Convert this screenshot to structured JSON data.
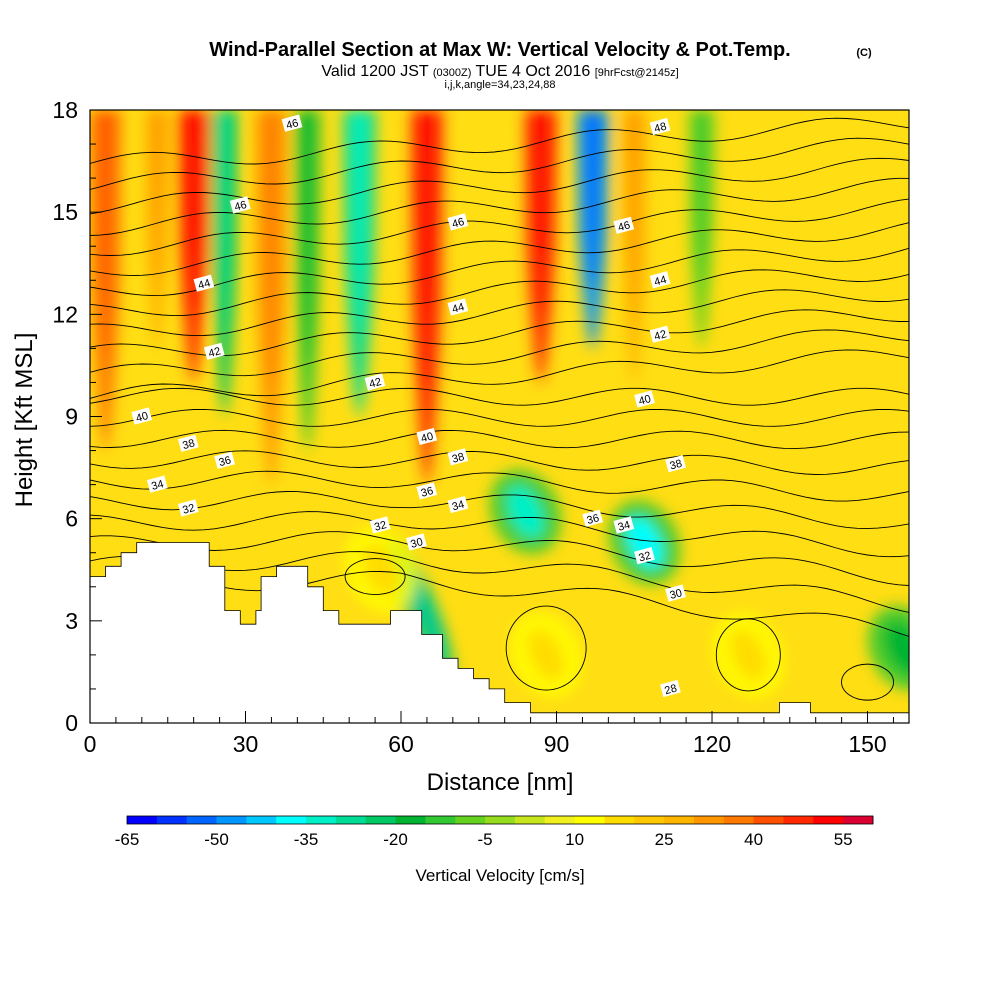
{
  "header": {
    "title": "Wind-Parallel Section at Max W: Vertical Velocity & Pot.Temp.",
    "copyright": "(C)",
    "valid_prefix": "Valid 1200 JST",
    "valid_utc": "(0300Z)",
    "valid_date": "TUE 4 Oct 2016",
    "forecast_tag": "[9hrFcst@2145z]",
    "indices": "i,j,k,angle=34,23,24,88"
  },
  "chart_data": {
    "type": "heatmap",
    "title": "Wind-Parallel Section at Max W: Vertical Velocity & Pot.Temp.",
    "xlabel": "Distance [nm]",
    "ylabel": "Height [Kft MSL]",
    "xlim": [
      0,
      158
    ],
    "ylim": [
      0,
      18
    ],
    "x_ticks": [
      0,
      30,
      60,
      90,
      120,
      150
    ],
    "y_ticks": [
      0,
      3,
      6,
      9,
      12,
      15,
      18
    ],
    "colorbar": {
      "label": "Vertical Velocity [cm/s]",
      "min": -65,
      "max": 60,
      "step": 5,
      "tick_labels": [
        -65,
        -50,
        -35,
        -20,
        -5,
        10,
        25,
        40,
        55
      ],
      "colors": [
        "#0000ff",
        "#0032ff",
        "#0064ff",
        "#0096ff",
        "#00c8ff",
        "#00ffff",
        "#00f0c8",
        "#00dc96",
        "#00c864",
        "#00b432",
        "#32c832",
        "#64d21e",
        "#96dc1e",
        "#c8e61e",
        "#f0f01e",
        "#ffff00",
        "#ffdc00",
        "#ffc800",
        "#ffb400",
        "#ff9600",
        "#ff7800",
        "#ff5000",
        "#ff2800",
        "#ff0000",
        "#dc0032",
        "#b40050",
        "#96006e",
        "#780096",
        "#500096"
      ]
    },
    "vertical_velocity_features": [
      {
        "x": 3,
        "top": 18,
        "bottom": 8,
        "w": 35,
        "shape": "column"
      },
      {
        "x": 13,
        "top": 18,
        "bottom": 11,
        "w": 25,
        "shape": "column"
      },
      {
        "x": 20,
        "top": 18,
        "bottom": 10,
        "w": 45,
        "shape": "column"
      },
      {
        "x": 26,
        "top": 18,
        "bottom": 9,
        "w": -25,
        "shape": "column"
      },
      {
        "x": 35,
        "top": 18,
        "bottom": 7,
        "w": 30,
        "shape": "column"
      },
      {
        "x": 42,
        "top": 18,
        "bottom": 8,
        "w": -15,
        "shape": "column"
      },
      {
        "x": 52,
        "top": 18,
        "bottom": 9,
        "w": -30,
        "shape": "column"
      },
      {
        "x": 65,
        "top": 18,
        "bottom": 7,
        "w": 45,
        "shape": "column"
      },
      {
        "x": 87,
        "top": 18,
        "bottom": 10,
        "w": 45,
        "shape": "column"
      },
      {
        "x": 97,
        "top": 18,
        "bottom": 11,
        "w": -50,
        "shape": "column"
      },
      {
        "x": 105,
        "top": 18,
        "bottom": 10,
        "w": 25,
        "shape": "column"
      },
      {
        "x": 118,
        "top": 18,
        "bottom": 11,
        "w": -10,
        "shape": "column"
      },
      {
        "x": 64,
        "y": 3.5,
        "w": -45,
        "shape": "tilted"
      },
      {
        "x": 84,
        "y": 6.2,
        "w": -35,
        "shape": "blob"
      },
      {
        "x": 107,
        "y": 5.3,
        "w": -40,
        "shape": "blob"
      },
      {
        "x": 56,
        "y": 4.5,
        "w": 15,
        "shape": "blob"
      },
      {
        "x": 88,
        "y": 2.0,
        "w": 15,
        "shape": "blob"
      },
      {
        "x": 127,
        "y": 2.0,
        "w": 15,
        "shape": "blob"
      },
      {
        "x": 157,
        "y": 2.2,
        "w": -20,
        "shape": "blob"
      }
    ],
    "theta_levels": [
      28,
      30,
      32,
      34,
      36,
      38,
      40,
      42,
      44,
      46,
      48
    ],
    "theta_contour_labels": [
      {
        "text": "28",
        "x": 112,
        "y": 1.0
      },
      {
        "text": "30",
        "x": 63,
        "y": 5.3
      },
      {
        "text": "30",
        "x": 113,
        "y": 3.8
      },
      {
        "text": "32",
        "x": 19,
        "y": 6.3
      },
      {
        "text": "32",
        "x": 56,
        "y": 5.8
      },
      {
        "text": "32",
        "x": 107,
        "y": 4.9
      },
      {
        "text": "34",
        "x": 13,
        "y": 7.0
      },
      {
        "text": "34",
        "x": 71,
        "y": 6.4
      },
      {
        "text": "34",
        "x": 103,
        "y": 5.8
      },
      {
        "text": "36",
        "x": 26,
        "y": 7.7
      },
      {
        "text": "36",
        "x": 65,
        "y": 6.8
      },
      {
        "text": "36",
        "x": 97,
        "y": 6.0
      },
      {
        "text": "38",
        "x": 19,
        "y": 8.2
      },
      {
        "text": "38",
        "x": 71,
        "y": 7.8
      },
      {
        "text": "38",
        "x": 113,
        "y": 7.6
      },
      {
        "text": "40",
        "x": 10,
        "y": 9.0
      },
      {
        "text": "40",
        "x": 65,
        "y": 8.4
      },
      {
        "text": "40",
        "x": 107,
        "y": 9.5
      },
      {
        "text": "42",
        "x": 24,
        "y": 10.9
      },
      {
        "text": "42",
        "x": 55,
        "y": 10.0
      },
      {
        "text": "42",
        "x": 110,
        "y": 11.4
      },
      {
        "text": "44",
        "x": 22,
        "y": 12.9
      },
      {
        "text": "44",
        "x": 71,
        "y": 12.2
      },
      {
        "text": "44",
        "x": 110,
        "y": 13.0
      },
      {
        "text": "46",
        "x": 29,
        "y": 15.2
      },
      {
        "text": "46",
        "x": 71,
        "y": 14.7
      },
      {
        "text": "46",
        "x": 103,
        "y": 14.6
      },
      {
        "text": "46",
        "x": 39,
        "y": 17.6
      },
      {
        "text": "48",
        "x": 110,
        "y": 17.5
      }
    ],
    "terrain": [
      [
        0,
        4.3
      ],
      [
        3,
        4.3
      ],
      [
        3,
        4.6
      ],
      [
        6,
        4.6
      ],
      [
        6,
        5.0
      ],
      [
        9,
        5.0
      ],
      [
        9,
        5.3
      ],
      [
        23,
        5.3
      ],
      [
        23,
        4.6
      ],
      [
        26,
        4.6
      ],
      [
        26,
        3.3
      ],
      [
        29,
        3.3
      ],
      [
        29,
        2.9
      ],
      [
        32,
        2.9
      ],
      [
        32,
        3.3
      ],
      [
        33,
        3.3
      ],
      [
        33,
        4.3
      ],
      [
        36,
        4.3
      ],
      [
        36,
        4.6
      ],
      [
        42,
        4.6
      ],
      [
        42,
        4.0
      ],
      [
        45,
        4.0
      ],
      [
        45,
        3.3
      ],
      [
        48,
        3.3
      ],
      [
        48,
        2.9
      ],
      [
        58,
        2.9
      ],
      [
        58,
        3.3
      ],
      [
        64,
        3.3
      ],
      [
        64,
        2.6
      ],
      [
        68,
        2.6
      ],
      [
        68,
        1.9
      ],
      [
        71,
        1.9
      ],
      [
        71,
        1.6
      ],
      [
        74,
        1.6
      ],
      [
        74,
        1.3
      ],
      [
        77,
        1.3
      ],
      [
        77,
        1.0
      ],
      [
        80,
        1.0
      ],
      [
        80,
        0.6
      ],
      [
        85,
        0.6
      ],
      [
        85,
        0.3
      ],
      [
        133,
        0.3
      ],
      [
        133,
        0.6
      ],
      [
        139,
        0.6
      ],
      [
        139,
        0.3
      ],
      [
        158,
        0.3
      ]
    ],
    "grid": false
  }
}
